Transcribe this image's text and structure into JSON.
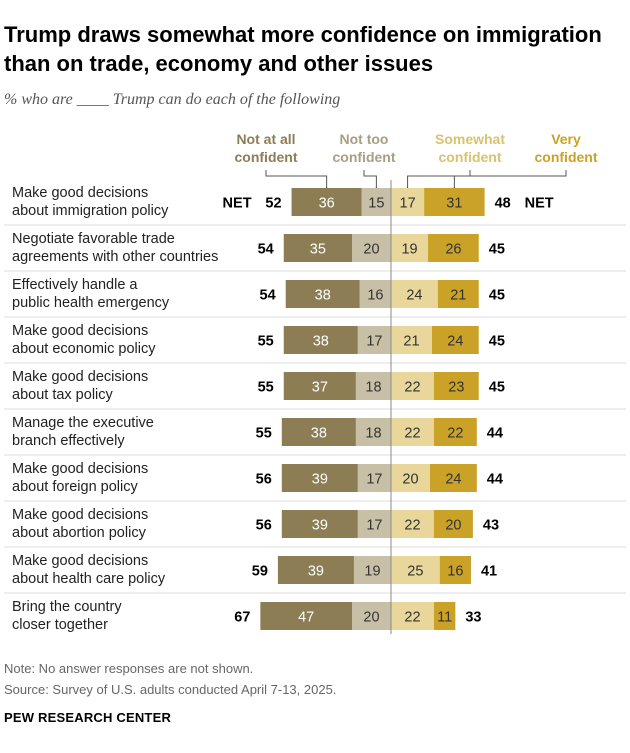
{
  "title": "Trump draws somewhat more confidence on immigration than on trade, economy and other issues",
  "subtitle": "% who are ____ Trump can do each of the following",
  "note": "Note: No answer responses are not shown.",
  "source": "Source: Survey of U.S. adults conducted April 7-13, 2025.",
  "organization": "PEW RESEARCH CENTER",
  "net_label": "NET",
  "colors": {
    "not_at_all": "#8C7D55",
    "not_too": "#C8C0A6",
    "somewhat": "#E9D69A",
    "very": "#C9A227",
    "header_not_at_all": "#8C7D55",
    "header_not_too": "#A79E84",
    "header_somewhat": "#D9C26E",
    "header_very": "#C9A227"
  },
  "chart_data": {
    "type": "bar",
    "orientation": "horizontal-diverging",
    "series": [
      {
        "name": "Not at all confident",
        "values": [
          36,
          35,
          38,
          38,
          37,
          38,
          39,
          39,
          39,
          47
        ]
      },
      {
        "name": "Not too confident",
        "values": [
          15,
          20,
          16,
          17,
          18,
          18,
          17,
          17,
          19,
          20
        ]
      },
      {
        "name": "Somewhat confident",
        "values": [
          17,
          19,
          24,
          21,
          22,
          22,
          20,
          22,
          25,
          22
        ]
      },
      {
        "name": "Very confident",
        "values": [
          31,
          26,
          21,
          24,
          23,
          22,
          24,
          20,
          16,
          11
        ]
      }
    ],
    "categories": [
      [
        "Make good decisions",
        "about immigration policy"
      ],
      [
        "Negotiate favorable trade",
        "agreements with other countries"
      ],
      [
        "Effectively handle a",
        "public health emergency"
      ],
      [
        "Make good decisions",
        "about economic policy"
      ],
      [
        "Make good decisions",
        "about tax policy"
      ],
      [
        "Manage the executive",
        "branch effectively"
      ],
      [
        "Make good decisions",
        "about foreign policy"
      ],
      [
        "Make good decisions",
        "about abortion policy"
      ],
      [
        "Make good decisions",
        "about health care policy"
      ],
      [
        "Bring the country",
        "closer together"
      ]
    ],
    "net_not_confident": [
      52,
      54,
      54,
      55,
      55,
      55,
      56,
      56,
      59,
      67
    ],
    "net_confident": [
      48,
      45,
      45,
      45,
      45,
      44,
      44,
      43,
      41,
      33
    ],
    "legend_headers": [
      [
        "Not at all",
        "confident"
      ],
      [
        "Not too",
        "confident"
      ],
      [
        "Somewhat",
        "confident"
      ],
      [
        "Very",
        "confident"
      ]
    ]
  }
}
